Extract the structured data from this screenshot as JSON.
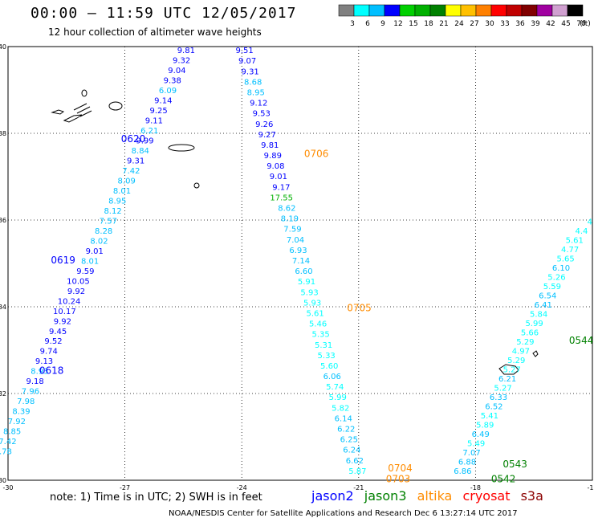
{
  "header": {
    "title": "00:00 – 11:59 UTC 12/05/2017",
    "subtitle": "12 hour collection of altimeter wave heights"
  },
  "colorbar": {
    "colors": [
      "#808080",
      "#00ffff",
      "#00bfff",
      "#0000ff",
      "#00d000",
      "#00b000",
      "#008000",
      "#ffff00",
      "#ffc000",
      "#ff8000",
      "#ff0000",
      "#c00000",
      "#800000",
      "#a000a0",
      "#d0a0d0",
      "#000000"
    ],
    "ticks": [
      "3",
      "6",
      "9",
      "12",
      "15",
      "18",
      "21",
      "24",
      "27",
      "30",
      "33",
      "36",
      "39",
      "42",
      "45",
      "70"
    ],
    "unit": "(ft)"
  },
  "axes": {
    "x_ticks": [
      {
        "v": -30,
        "t": "-30"
      },
      {
        "v": -27,
        "t": "-27"
      },
      {
        "v": -24,
        "t": "-24"
      },
      {
        "v": -21,
        "t": "-21"
      },
      {
        "v": -18,
        "t": "-18"
      },
      {
        "v": -15,
        "t": "-15"
      }
    ],
    "y_ticks": [
      {
        "v": 40,
        "t": "40"
      },
      {
        "v": 38,
        "t": "38"
      },
      {
        "v": 36,
        "t": "36"
      },
      {
        "v": 34,
        "t": "34"
      },
      {
        "v": 32,
        "t": "32"
      },
      {
        "v": 30,
        "t": "30"
      }
    ]
  },
  "satellite_colors": {
    "jason2": "#0000ff",
    "jason3": "#008000",
    "altika": "#ff8c00",
    "cryosat": "#ff0000",
    "s3a": "#8b0000"
  },
  "tracks": [
    {
      "name": "track-west",
      "from": [
        -25.2,
        39.85
      ],
      "to": [
        -29.9,
        30.6
      ],
      "values": [
        "9.81",
        "9.32",
        "9.04",
        "9.38",
        "6.09",
        "9.14",
        "9.25",
        "9.11",
        "6.21",
        "9.99",
        "8.84",
        "9.31",
        "7.42",
        "8.09",
        "8.01",
        "8.95",
        "8.12",
        "7.57",
        "8.28",
        "8.02",
        "9.01",
        "8.01",
        "9.59",
        "10.05",
        "9.92",
        "10.24",
        "10.17",
        "9.92",
        "9.45",
        "9.52",
        "9.74",
        "9.13",
        "8.93",
        "9.18",
        "7.96",
        "7.98",
        "8.39",
        "7.92",
        "8.85",
        "7.42",
        "7.78"
      ]
    },
    {
      "name": "track-central",
      "from": [
        -23.7,
        39.85
      ],
      "to": [
        -20.8,
        30.15
      ],
      "values": [
        "9.51",
        "9.07",
        "9.31",
        "8.68",
        "8.95",
        "9.12",
        "9.53",
        "9.26",
        "9.27",
        "9.81",
        "9.89",
        "9.08",
        "9.01",
        "9.17",
        "17.55",
        "8.62",
        "8.19",
        "7.59",
        "7.04",
        "6.93",
        "7.14",
        "6.60",
        "5.91",
        "5.93",
        "5.93",
        "5.61",
        "5.46",
        "5.35",
        "5.31",
        "5.33",
        "5.60",
        "6.06",
        "5.74",
        "5.99",
        "5.82",
        "6.14",
        "6.22",
        "6.25",
        "6.24",
        "6.62",
        "5.87"
      ]
    },
    {
      "name": "track-east",
      "from": [
        -15.0,
        35.9
      ],
      "to": [
        -18.1,
        30.15
      ],
      "values": [
        "4",
        "4.4",
        "5.61",
        "4.77",
        "5.65",
        "6.10",
        "5.26",
        "5.59",
        "6.54",
        "6.41",
        "5.84",
        "5.99",
        "5.66",
        "5.29",
        "4.97",
        "5.29",
        "5.27",
        "6.21",
        "5.27",
        "6.33",
        "6.52",
        "5.41",
        "5.89",
        "6.49",
        "5.49",
        "7.07",
        "6.88",
        "6.86"
      ]
    }
  ],
  "pass_labels": [
    {
      "text": "0620",
      "sat": "jason2",
      "lon": -27.1,
      "lat": 37.8
    },
    {
      "text": "0619",
      "sat": "jason2",
      "lon": -28.9,
      "lat": 35.0
    },
    {
      "text": "0618",
      "sat": "jason2",
      "lon": -29.2,
      "lat": 32.45
    },
    {
      "text": "0706",
      "sat": "altika",
      "lon": -22.4,
      "lat": 37.45
    },
    {
      "text": "0705",
      "sat": "altika",
      "lon": -21.3,
      "lat": 33.9
    },
    {
      "text": "0704",
      "sat": "altika",
      "lon": -20.25,
      "lat": 30.2
    },
    {
      "text": "0703",
      "sat": "altika",
      "lon": -20.3,
      "lat": 29.95
    },
    {
      "text": "0544",
      "sat": "jason3",
      "lon": -15.6,
      "lat": 33.15
    },
    {
      "text": "0543",
      "sat": "jason3",
      "lon": -17.3,
      "lat": 30.3
    },
    {
      "text": "0542",
      "sat": "jason3",
      "lon": -17.6,
      "lat": 29.95
    }
  ],
  "footer": {
    "note": "note: 1) Time is in UTC; 2) SWH is in feet",
    "legend": [
      "jason2",
      "jason3",
      "altika",
      "cryosat",
      "s3a"
    ],
    "credit": "NOAA/NESDIS Center for Satellite Applications and Research    Dec  6 13:27:14 UTC 2017"
  }
}
